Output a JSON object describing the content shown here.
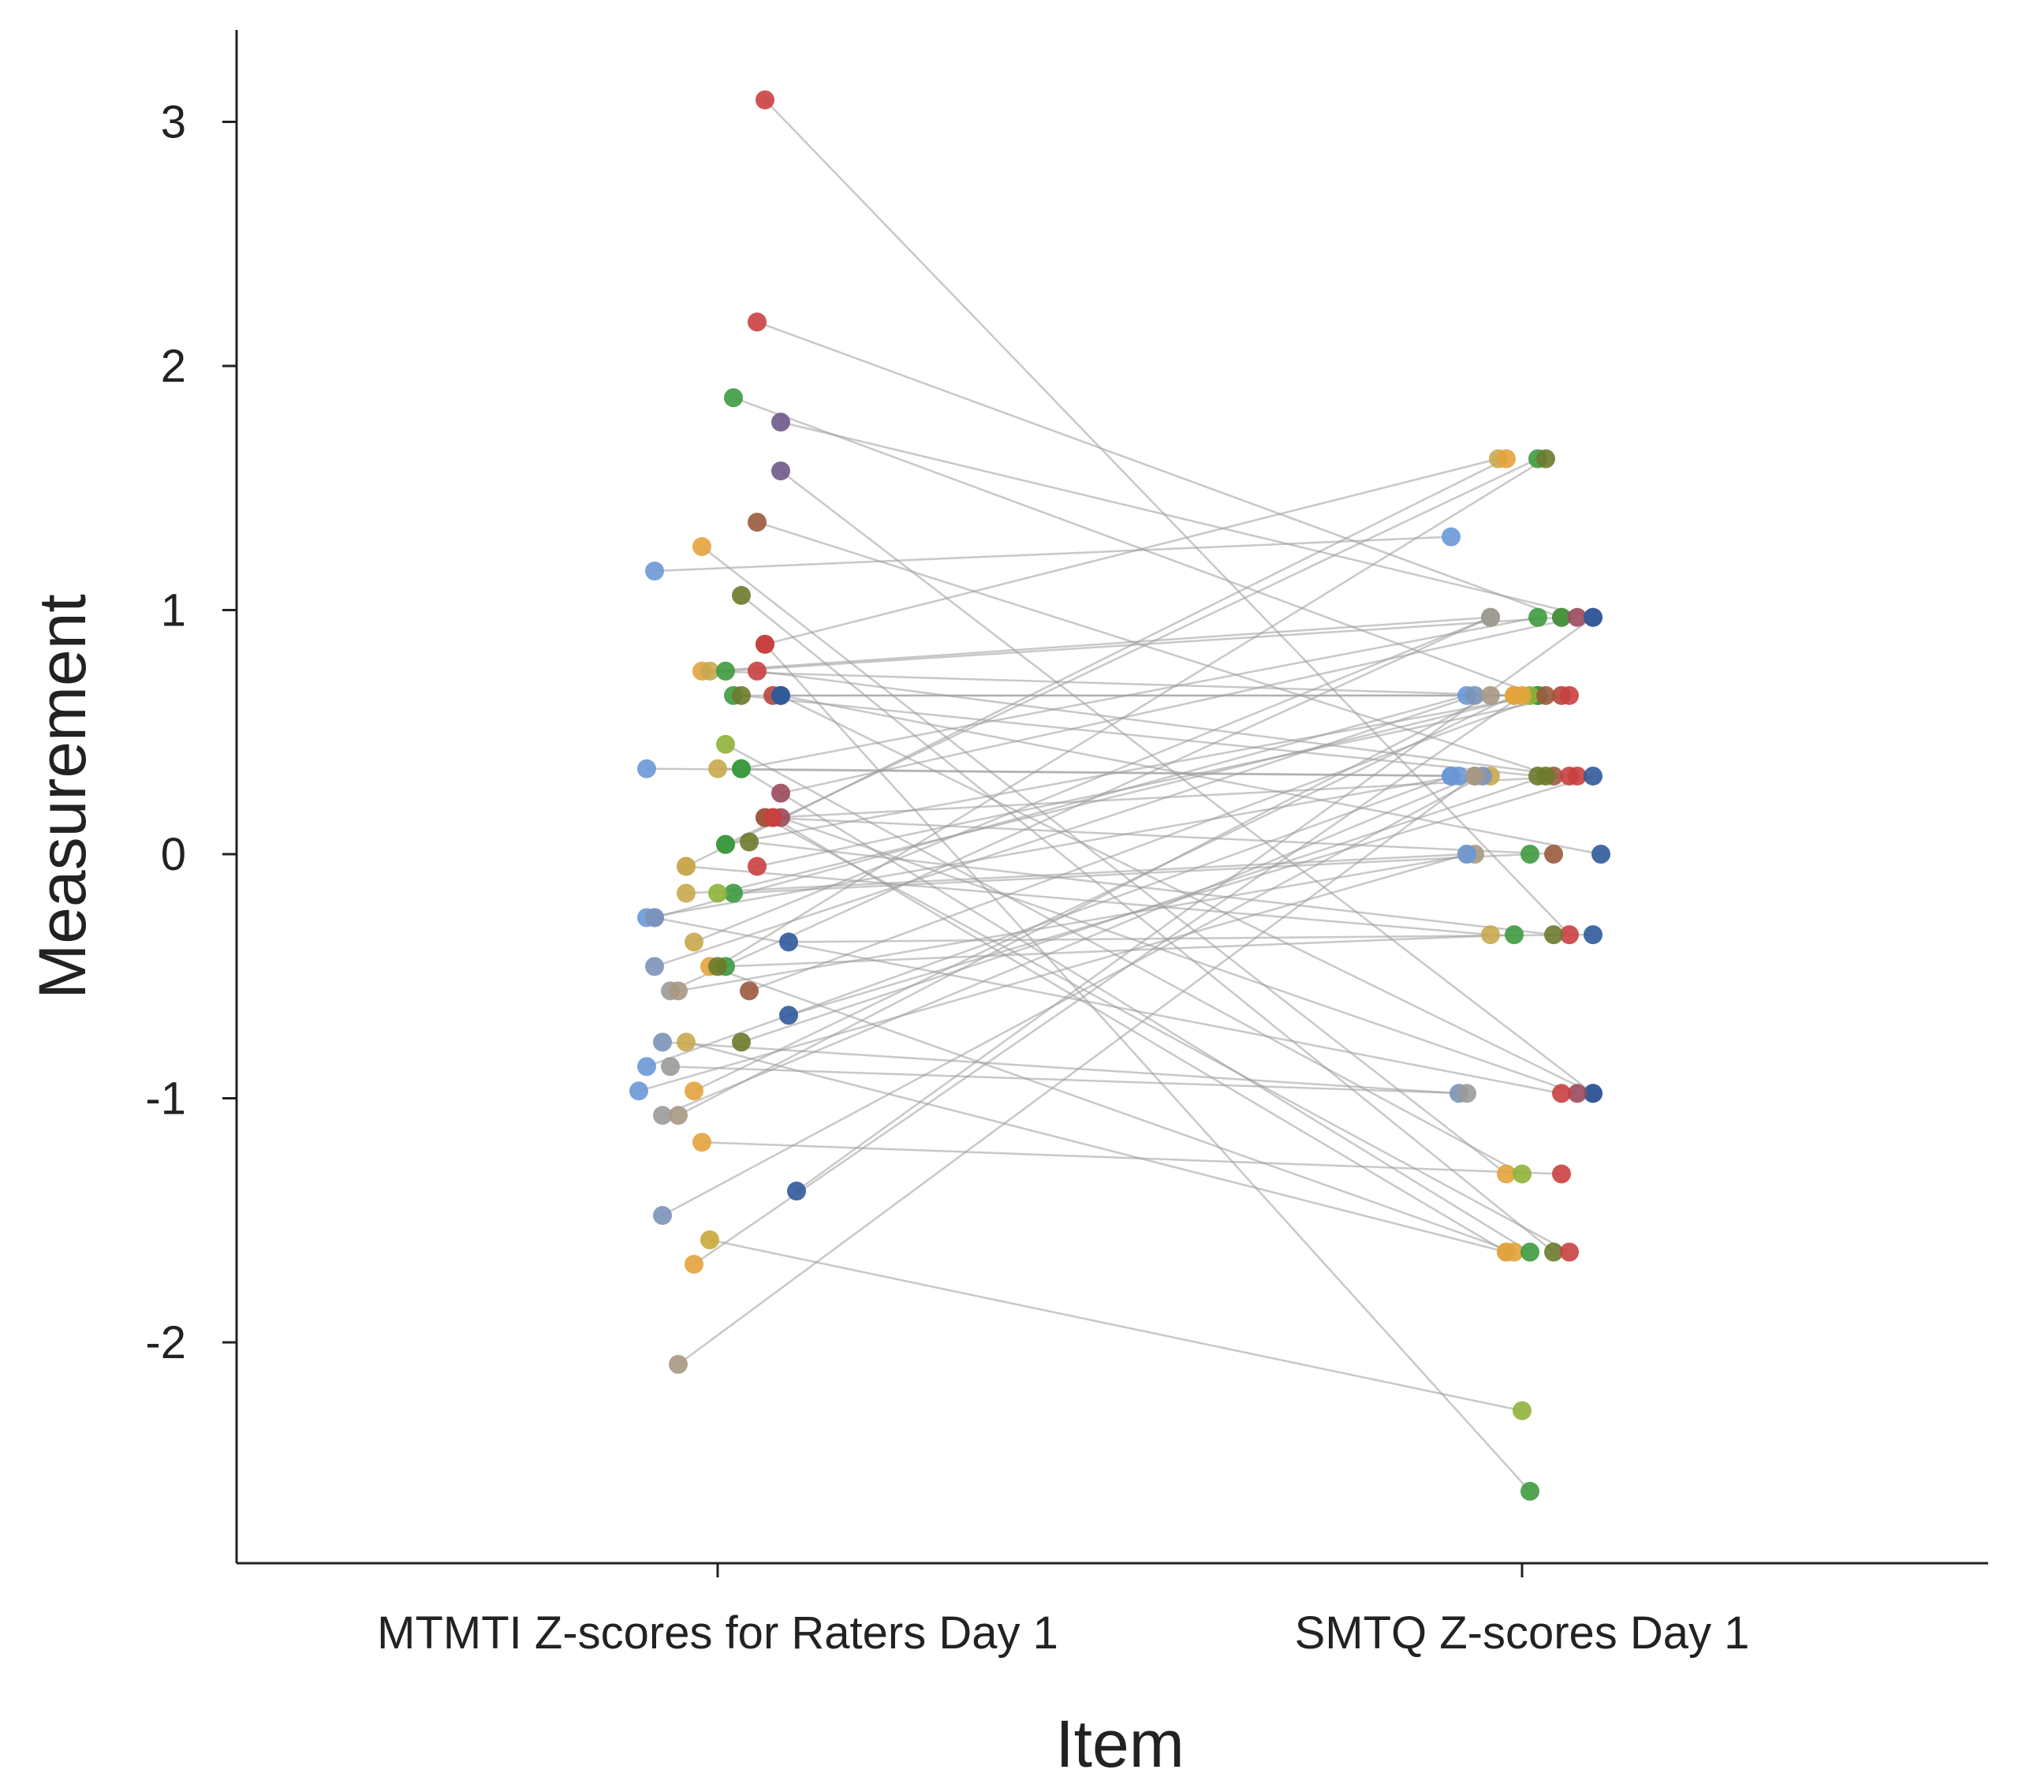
{
  "chart_data": {
    "type": "scatter",
    "subtype": "paired-dot-plot",
    "title": "",
    "xlabel": "Item",
    "ylabel": "Measurement",
    "categories": [
      "MTMTI Z-scores for Raters Day 1",
      "SMTQ Z-scores Day 1"
    ],
    "ylim": [
      -2.8,
      3.4
    ],
    "yticks": [
      -2,
      -1,
      0,
      1,
      2,
      3
    ],
    "ytick_labels": [
      "-2",
      "-1",
      "0",
      "1",
      "2",
      "3"
    ],
    "grid": false,
    "legend": "none",
    "line_color": "#9a9a9a",
    "pairs": [
      {
        "left": 3.09,
        "right": -0.33,
        "left_color": "#c9403f",
        "right_color": "#c9403f",
        "lj": 0.06,
        "rj": 0.06
      },
      {
        "left": 2.18,
        "right": 0.97,
        "left_color": "#c9403f",
        "right_color": "#c9403f",
        "lj": 0.05,
        "rj": 0.05
      },
      {
        "left": 1.87,
        "right": 0.65,
        "left_color": "#3d9a3f",
        "right_color": "#3d9a3f",
        "lj": 0.02,
        "rj": 0.02
      },
      {
        "left": 1.77,
        "right": 0.97,
        "left_color": "#6c5a8a",
        "right_color": "#6c5a8a",
        "lj": 0.08,
        "rj": 0.09
      },
      {
        "left": 1.57,
        "right": -0.98,
        "left_color": "#6c5a8a",
        "right_color": "#6c5a8a",
        "lj": 0.08,
        "rj": 0.09
      },
      {
        "left": 1.36,
        "right": 0.32,
        "left_color": "#9a5a3c",
        "right_color": "#9a5a3c",
        "lj": 0.05,
        "rj": 0.04
      },
      {
        "left": 1.26,
        "right": -1.31,
        "left_color": "#e3a33c",
        "right_color": "#e3a33c",
        "lj": -0.02,
        "rj": -0.02
      },
      {
        "left": 1.16,
        "right": 1.3,
        "left_color": "#6a98d6",
        "right_color": "#6a98d6",
        "lj": -0.08,
        "rj": -0.09
      },
      {
        "left": 1.06,
        "right": -1.63,
        "left_color": "#6b7a2c",
        "right_color": "#6b7a2c",
        "lj": 0.03,
        "rj": 0.04
      },
      {
        "left": 0.86,
        "right": 1.62,
        "left_color": "#c9403f",
        "right_color": "#c9a84e",
        "lj": 0.06,
        "rj": -0.03
      },
      {
        "left": 0.75,
        "right": 0.32,
        "left_color": "#c9403f",
        "right_color": "#c9403f",
        "lj": 0.05,
        "rj": 0.06
      },
      {
        "left": 0.75,
        "right": 0.65,
        "left_color": "#e3a33c",
        "right_color": "#e3a33c",
        "lj": -0.02,
        "rj": -0.01
      },
      {
        "left": 0.75,
        "right": 0.97,
        "left_color": "#c9a84e",
        "right_color": "#c9a84e",
        "lj": -0.01,
        "rj": -0.04
      },
      {
        "left": 0.75,
        "right": 0.97,
        "left_color": "#3d9a3f",
        "right_color": "#3d9a3f",
        "lj": 0.01,
        "rj": 0.05
      },
      {
        "left": 0.65,
        "right": 0.65,
        "left_color": "#3d9a3f",
        "right_color": "#3d9a3f",
        "lj": 0.02,
        "rj": 0.02
      },
      {
        "left": 0.65,
        "right": 0.32,
        "left_color": "#6b7a2c",
        "right_color": "#6b7a2c",
        "lj": 0.03,
        "rj": 0.02
      },
      {
        "left": 0.65,
        "right": 0.65,
        "left_color": "#b8453c",
        "right_color": "#b8453c",
        "lj": 0.07,
        "rj": 0.05
      },
      {
        "left": 0.65,
        "right": -0.98,
        "left_color": "#2f5a9a",
        "right_color": "#2f5a9a",
        "lj": 0.08,
        "rj": 0.09
      },
      {
        "left": 0.45,
        "right": -1.31,
        "left_color": "#8fb33a",
        "right_color": "#8fb33a",
        "lj": 0.01,
        "rj": 0.0
      },
      {
        "left": 0.35,
        "right": 0.32,
        "left_color": "#6a98d6",
        "right_color": "#6a98d6",
        "lj": -0.09,
        "rj": -0.09
      },
      {
        "left": 0.35,
        "right": 0.32,
        "left_color": "#c9a84e",
        "right_color": "#c9a84e",
        "lj": 0.0,
        "rj": -0.04
      },
      {
        "left": 0.35,
        "right": 0.97,
        "left_color": "#3d9a3f",
        "right_color": "#3d9a3f",
        "lj": 0.03,
        "rj": 0.02
      },
      {
        "left": 0.25,
        "right": 0.97,
        "left_color": "#9a4a5c",
        "right_color": "#9a4a5c",
        "lj": 0.08,
        "rj": 0.07
      },
      {
        "left": 0.15,
        "right": -1.63,
        "left_color": "#c9403f",
        "right_color": "#c9403f",
        "lj": 0.06,
        "rj": 0.06
      },
      {
        "left": 0.15,
        "right": 0.32,
        "left_color": "#c9403f",
        "right_color": "#c9403f",
        "lj": 0.07,
        "rj": 0.07
      },
      {
        "left": 0.15,
        "right": -0.98,
        "left_color": "#9a4a5c",
        "right_color": "#9a4a5c",
        "lj": 0.08,
        "rj": 0.07
      },
      {
        "left": 0.05,
        "right": -0.33,
        "left_color": "#6b7a2c",
        "right_color": "#6b7a2c",
        "lj": 0.04,
        "rj": 0.04
      },
      {
        "left": 0.04,
        "right": 0.65,
        "left_color": "#3d9a3f",
        "right_color": "#3d9a3f",
        "lj": 0.01,
        "rj": 0.02
      },
      {
        "left": -0.05,
        "right": 0.65,
        "left_color": "#c9403f",
        "right_color": "#c9403f",
        "lj": 0.05,
        "rj": 0.06
      },
      {
        "left": -0.05,
        "right": -0.33,
        "left_color": "#c9a84e",
        "right_color": "#c9a84e",
        "lj": -0.04,
        "rj": -0.04
      },
      {
        "left": -0.16,
        "right": 0.0,
        "left_color": "#3d9a3f",
        "right_color": "#3d9a3f",
        "lj": 0.02,
        "rj": 0.01
      },
      {
        "left": -0.16,
        "right": 0.0,
        "left_color": "#c9a84e",
        "right_color": "#c9a84e",
        "lj": -0.04,
        "rj": -0.07
      },
      {
        "left": -0.16,
        "right": 0.65,
        "left_color": "#8fb33a",
        "right_color": "#8fb33a",
        "lj": 0.0,
        "rj": 0.01
      },
      {
        "left": -0.26,
        "right": 0.32,
        "left_color": "#6a98d6",
        "right_color": "#6a98d6",
        "lj": -0.09,
        "rj": -0.08
      },
      {
        "left": -0.26,
        "right": 0.65,
        "left_color": "#6a98d6",
        "right_color": "#6a98d6",
        "lj": -0.08,
        "rj": -0.07
      },
      {
        "left": -0.36,
        "right": -0.33,
        "left_color": "#2f5a9a",
        "right_color": "#2f5a9a",
        "lj": 0.09,
        "rj": 0.09
      },
      {
        "left": -0.36,
        "right": 0.97,
        "left_color": "#c9a84e",
        "right_color": "#c9a84e",
        "lj": -0.03,
        "rj": -0.04
      },
      {
        "left": -0.46,
        "right": 0.65,
        "left_color": "#7b92b8",
        "right_color": "#7b92b8",
        "lj": -0.08,
        "rj": -0.06
      },
      {
        "left": -0.46,
        "right": -1.63,
        "left_color": "#e3a33c",
        "right_color": "#e3a33c",
        "lj": -0.01,
        "rj": -0.01
      },
      {
        "left": -0.46,
        "right": -0.33,
        "left_color": "#3d9a3f",
        "right_color": "#3d9a3f",
        "lj": 0.01,
        "rj": -0.01
      },
      {
        "left": -0.56,
        "right": 0.65,
        "left_color": "#9a5a3c",
        "right_color": "#9a5a3c",
        "lj": 0.04,
        "rj": 0.03
      },
      {
        "left": -0.56,
        "right": 0.97,
        "left_color": "#9a9a9a",
        "right_color": "#9a9a9a",
        "lj": -0.06,
        "rj": -0.04
      },
      {
        "left": -0.56,
        "right": 0.0,
        "left_color": "#a89884",
        "right_color": "#a89884",
        "lj": -0.05,
        "rj": -0.06
      },
      {
        "left": -0.66,
        "right": 0.32,
        "left_color": "#2f5a9a",
        "right_color": "#2f5a9a",
        "lj": 0.09,
        "rj": 0.09
      },
      {
        "left": -0.77,
        "right": 0.32,
        "left_color": "#6b7a2c",
        "right_color": "#6b7a2c",
        "lj": 0.03,
        "rj": 0.03
      },
      {
        "left": -0.77,
        "right": -0.98,
        "left_color": "#7b92b8",
        "right_color": "#7b92b8",
        "lj": -0.07,
        "rj": -0.08
      },
      {
        "left": -0.77,
        "right": -1.63,
        "left_color": "#c9a84e",
        "right_color": "#c9a84e",
        "lj": -0.04,
        "rj": -0.02
      },
      {
        "left": -0.87,
        "right": 0.32,
        "left_color": "#6a98d6",
        "right_color": "#6a98d6",
        "lj": -0.09,
        "rj": -0.09
      },
      {
        "left": -0.87,
        "right": -0.98,
        "left_color": "#9a9a9a",
        "right_color": "#9a9a9a",
        "lj": -0.06,
        "rj": -0.07
      },
      {
        "left": -0.97,
        "right": 0.0,
        "left_color": "#6a98d6",
        "right_color": "#6a98d6",
        "lj": -0.1,
        "rj": -0.07
      },
      {
        "left": -0.97,
        "right": 0.65,
        "left_color": "#e3a33c",
        "right_color": "#e3a33c",
        "lj": -0.03,
        "rj": -0.01
      },
      {
        "left": -1.07,
        "right": 0.32,
        "left_color": "#9a9a9a",
        "right_color": "#9a9a9a",
        "lj": -0.07,
        "rj": -0.06
      },
      {
        "left": -1.07,
        "right": 0.65,
        "left_color": "#a89884",
        "right_color": "#a89884",
        "lj": -0.05,
        "rj": -0.04
      },
      {
        "left": -1.18,
        "right": -1.31,
        "left_color": "#e3a33c",
        "right_color": "#c9403f",
        "lj": -0.02,
        "rj": 0.05
      },
      {
        "left": -1.38,
        "right": 0.97,
        "left_color": "#2f5a9a",
        "right_color": "#2f5a9a",
        "lj": 0.1,
        "rj": 0.09
      },
      {
        "left": -1.48,
        "right": 0.32,
        "left_color": "#7b92b8",
        "right_color": "#7b92b8",
        "lj": -0.07,
        "rj": -0.05
      },
      {
        "left": -1.58,
        "right": -2.28,
        "left_color": "#c9a83a",
        "right_color": "#8fb33a",
        "lj": -0.01,
        "rj": 0.0
      },
      {
        "left": -1.68,
        "right": 0.65,
        "left_color": "#e3a33c",
        "right_color": "#e3a33c",
        "lj": -0.03,
        "rj": 0.0
      },
      {
        "left": -2.09,
        "right": 0.32,
        "left_color": "#a89884",
        "right_color": "#a89884",
        "lj": -0.05,
        "rj": -0.06
      },
      {
        "left": 0.86,
        "right": -2.61,
        "left_color": "#c9403f",
        "right_color": "#3d9a3f",
        "lj": 0.06,
        "rj": 0.01
      },
      {
        "left": 0.15,
        "right": 0.0,
        "left_color": "#9a5a3c",
        "right_color": "#9a5a3c",
        "lj": 0.06,
        "rj": 0.04
      },
      {
        "left": 0.65,
        "right": 0.0,
        "left_color": "#2f5a9a",
        "right_color": "#2f5a9a",
        "lj": 0.08,
        "rj": 0.1
      },
      {
        "left": -0.05,
        "right": 1.62,
        "left_color": "#c9a84e",
        "right_color": "#e3a33c",
        "lj": -0.04,
        "rj": -0.02
      },
      {
        "left": 0.04,
        "right": 1.62,
        "left_color": "#3d9a3f",
        "right_color": "#3d9a3f",
        "lj": 0.01,
        "rj": 0.02
      },
      {
        "left": -0.46,
        "right": 1.62,
        "left_color": "#6b7a2c",
        "right_color": "#6b7a2c",
        "lj": 0.0,
        "rj": 0.03
      },
      {
        "left": 0.35,
        "right": -1.63,
        "left_color": "#3d9a3f",
        "right_color": "#3d9a3f",
        "lj": 0.03,
        "rj": 0.01
      },
      {
        "left": -0.26,
        "right": -0.98,
        "left_color": "#7b92b8",
        "right_color": "#c9403f",
        "lj": -0.08,
        "rj": 0.05
      },
      {
        "left": 0.15,
        "right": -1.63,
        "left_color": "#c9403f",
        "right_color": "#e3a33c",
        "lj": 0.07,
        "rj": -0.02
      }
    ]
  }
}
